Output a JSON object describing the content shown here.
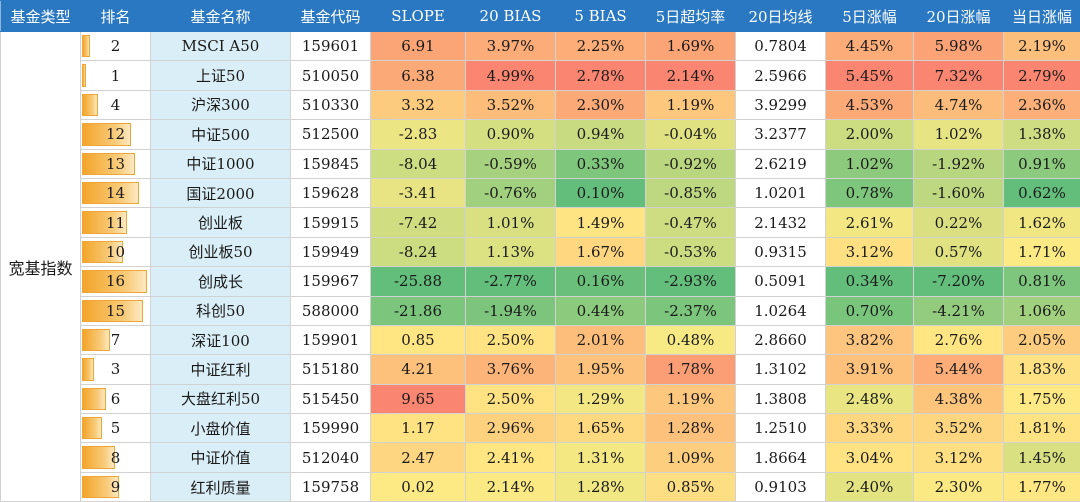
{
  "table": {
    "headers": [
      "基金类型",
      "排名",
      "基金名称",
      "基金代码",
      "SLOPE",
      "20 BIAS",
      "5 BIAS",
      "5日超均率",
      "20日均线",
      "5日涨幅",
      "20日涨幅",
      "当日涨幅"
    ],
    "category": "宽基指数",
    "rank_max": 16,
    "colors": {
      "red": "#f8696b",
      "yellow": "#ffeb84",
      "green": "#63be7b"
    },
    "rows": [
      {
        "rank": "2",
        "name": "MSCI A50",
        "code": "159601",
        "slope": "6.91",
        "bias20": "3.97%",
        "bias5": "2.25%",
        "excess5": "1.69%",
        "ma20": "0.7804",
        "chg5": "4.45%",
        "chg20": "5.98%",
        "chg1": "2.19%"
      },
      {
        "rank": "1",
        "name": "上证50",
        "code": "510050",
        "slope": "6.38",
        "bias20": "4.99%",
        "bias5": "2.78%",
        "excess5": "2.14%",
        "ma20": "2.5966",
        "chg5": "5.45%",
        "chg20": "7.32%",
        "chg1": "2.79%"
      },
      {
        "rank": "4",
        "name": "沪深300",
        "code": "510330",
        "slope": "3.32",
        "bias20": "3.52%",
        "bias5": "2.30%",
        "excess5": "1.19%",
        "ma20": "3.9299",
        "chg5": "4.53%",
        "chg20": "4.74%",
        "chg1": "2.36%"
      },
      {
        "rank": "12",
        "name": "中证500",
        "code": "512500",
        "slope": "-2.83",
        "bias20": "0.90%",
        "bias5": "0.94%",
        "excess5": "-0.04%",
        "ma20": "3.2377",
        "chg5": "2.00%",
        "chg20": "1.02%",
        "chg1": "1.38%"
      },
      {
        "rank": "13",
        "name": "中证1000",
        "code": "159845",
        "slope": "-8.04",
        "bias20": "-0.59%",
        "bias5": "0.33%",
        "excess5": "-0.92%",
        "ma20": "2.6219",
        "chg5": "1.02%",
        "chg20": "-1.92%",
        "chg1": "0.91%"
      },
      {
        "rank": "14",
        "name": "国证2000",
        "code": "159628",
        "slope": "-3.41",
        "bias20": "-0.76%",
        "bias5": "0.10%",
        "excess5": "-0.85%",
        "ma20": "1.0201",
        "chg5": "0.78%",
        "chg20": "-1.60%",
        "chg1": "0.62%"
      },
      {
        "rank": "11",
        "name": "创业板",
        "code": "159915",
        "slope": "-7.42",
        "bias20": "1.01%",
        "bias5": "1.49%",
        "excess5": "-0.47%",
        "ma20": "2.1432",
        "chg5": "2.61%",
        "chg20": "0.22%",
        "chg1": "1.62%"
      },
      {
        "rank": "10",
        "name": "创业板50",
        "code": "159949",
        "slope": "-8.24",
        "bias20": "1.13%",
        "bias5": "1.67%",
        "excess5": "-0.53%",
        "ma20": "0.9315",
        "chg5": "3.12%",
        "chg20": "0.57%",
        "chg1": "1.71%"
      },
      {
        "rank": "16",
        "name": "创成长",
        "code": "159967",
        "slope": "-25.88",
        "bias20": "-2.77%",
        "bias5": "0.16%",
        "excess5": "-2.93%",
        "ma20": "0.5091",
        "chg5": "0.34%",
        "chg20": "-7.20%",
        "chg1": "0.81%"
      },
      {
        "rank": "15",
        "name": "科创50",
        "code": "588000",
        "slope": "-21.86",
        "bias20": "-1.94%",
        "bias5": "0.44%",
        "excess5": "-2.37%",
        "ma20": "1.0264",
        "chg5": "0.70%",
        "chg20": "-4.21%",
        "chg1": "1.06%"
      },
      {
        "rank": "7",
        "name": "深证100",
        "code": "159901",
        "slope": "0.85",
        "bias20": "2.50%",
        "bias5": "2.01%",
        "excess5": "0.48%",
        "ma20": "2.8660",
        "chg5": "3.82%",
        "chg20": "2.76%",
        "chg1": "2.05%"
      },
      {
        "rank": "3",
        "name": "中证红利",
        "code": "515180",
        "slope": "4.21",
        "bias20": "3.76%",
        "bias5": "1.95%",
        "excess5": "1.78%",
        "ma20": "1.3102",
        "chg5": "3.91%",
        "chg20": "5.44%",
        "chg1": "1.83%"
      },
      {
        "rank": "6",
        "name": "大盘红利50",
        "code": "515450",
        "slope": "9.65",
        "bias20": "2.50%",
        "bias5": "1.29%",
        "excess5": "1.19%",
        "ma20": "1.3808",
        "chg5": "2.48%",
        "chg20": "4.38%",
        "chg1": "1.75%"
      },
      {
        "rank": "5",
        "name": "小盘价值",
        "code": "159990",
        "slope": "1.17",
        "bias20": "2.96%",
        "bias5": "1.65%",
        "excess5": "1.28%",
        "ma20": "1.2510",
        "chg5": "3.33%",
        "chg20": "3.52%",
        "chg1": "1.81%"
      },
      {
        "rank": "8",
        "name": "中证价值",
        "code": "512040",
        "slope": "2.47",
        "bias20": "2.41%",
        "bias5": "1.31%",
        "excess5": "1.09%",
        "ma20": "1.8664",
        "chg5": "3.04%",
        "chg20": "3.12%",
        "chg1": "1.45%"
      },
      {
        "rank": "9",
        "name": "红利质量",
        "code": "159758",
        "slope": "0.02",
        "bias20": "2.14%",
        "bias5": "1.28%",
        "excess5": "0.85%",
        "ma20": "0.9103",
        "chg5": "2.40%",
        "chg20": "2.30%",
        "chg1": "1.77%"
      }
    ]
  }
}
